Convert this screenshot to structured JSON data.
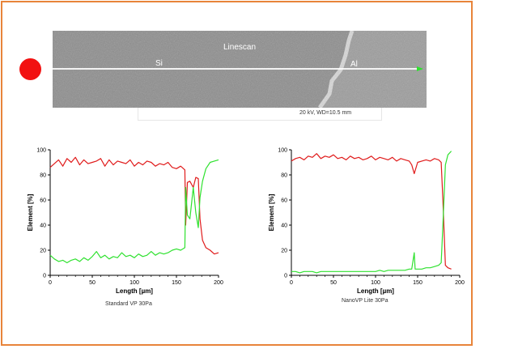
{
  "colors": {
    "border": "#e8843a",
    "dot": "#f21111",
    "red_series": "#e01b1b",
    "green_series": "#2fe12f",
    "scan_line": "#ffffff"
  },
  "sem_image": {
    "title": "Linescan",
    "label_left": "Si",
    "label_right": "Al",
    "caption": "20 kV, WD=10.5 mm"
  },
  "chart_data": [
    {
      "type": "line",
      "caption": "Standard VP 30Pa",
      "xlabel": "Length [µm]",
      "ylabel": "Element [%]",
      "xlim": [
        0,
        200
      ],
      "ylim": [
        0,
        100
      ],
      "xticks": [
        0,
        50,
        100,
        150,
        200
      ],
      "yticks": [
        0,
        20,
        40,
        60,
        80,
        100
      ],
      "grid": false,
      "series": [
        {
          "color": "#e01b1b",
          "x": [
            0,
            5,
            10,
            15,
            20,
            25,
            30,
            35,
            40,
            45,
            50,
            55,
            60,
            65,
            70,
            75,
            80,
            85,
            90,
            95,
            100,
            105,
            110,
            115,
            120,
            125,
            130,
            135,
            140,
            145,
            150,
            155,
            160,
            161,
            163,
            166,
            170,
            173,
            176,
            178,
            181,
            185,
            190,
            195,
            200
          ],
          "y": [
            86,
            89,
            92,
            87,
            93,
            90,
            94,
            88,
            92,
            89,
            90,
            91,
            93,
            87,
            92,
            88,
            91,
            90,
            89,
            92,
            87,
            90,
            88,
            91,
            90,
            87,
            89,
            88,
            90,
            86,
            85,
            87,
            84,
            40,
            74,
            75,
            70,
            78,
            77,
            45,
            28,
            22,
            20,
            17,
            18
          ]
        },
        {
          "color": "#2fe12f",
          "x": [
            0,
            5,
            10,
            15,
            20,
            25,
            30,
            35,
            40,
            45,
            50,
            55,
            60,
            65,
            70,
            75,
            80,
            85,
            90,
            95,
            100,
            105,
            110,
            115,
            120,
            125,
            130,
            135,
            140,
            145,
            150,
            155,
            160,
            161,
            163,
            166,
            170,
            173,
            176,
            178,
            181,
            185,
            190,
            195,
            200
          ],
          "y": [
            16,
            13,
            11,
            12,
            10,
            12,
            13,
            11,
            14,
            12,
            15,
            19,
            14,
            16,
            13,
            15,
            14,
            18,
            15,
            16,
            14,
            17,
            15,
            16,
            19,
            16,
            18,
            17,
            18,
            20,
            21,
            20,
            22,
            70,
            48,
            45,
            70,
            50,
            38,
            62,
            75,
            85,
            90,
            91,
            92
          ]
        }
      ]
    },
    {
      "type": "line",
      "caption": "NanoVP Lite 30Pa",
      "xlabel": "Length [µm]",
      "ylabel": "Element [%]",
      "xlim": [
        0,
        200
      ],
      "ylim": [
        0,
        100
      ],
      "xticks": [
        0,
        50,
        100,
        150,
        200
      ],
      "yticks": [
        0,
        20,
        40,
        60,
        80,
        100
      ],
      "grid": false,
      "series": [
        {
          "color": "#e01b1b",
          "x": [
            0,
            5,
            10,
            15,
            20,
            25,
            30,
            35,
            40,
            45,
            50,
            55,
            60,
            65,
            70,
            75,
            80,
            85,
            90,
            95,
            100,
            105,
            110,
            115,
            120,
            125,
            130,
            135,
            140,
            143,
            146,
            150,
            155,
            160,
            165,
            170,
            175,
            178,
            180,
            183,
            186,
            190
          ],
          "y": [
            91,
            93,
            94,
            92,
            95,
            94,
            97,
            93,
            95,
            94,
            96,
            93,
            94,
            92,
            95,
            93,
            94,
            92,
            93,
            95,
            92,
            94,
            93,
            92,
            94,
            91,
            93,
            92,
            91,
            88,
            81,
            90,
            91,
            92,
            91,
            93,
            92,
            90,
            60,
            8,
            6,
            5
          ]
        },
        {
          "color": "#2fe12f",
          "x": [
            0,
            5,
            10,
            15,
            20,
            25,
            30,
            35,
            40,
            45,
            50,
            55,
            60,
            65,
            70,
            75,
            80,
            85,
            90,
            95,
            100,
            105,
            110,
            115,
            120,
            125,
            130,
            135,
            140,
            143,
            146,
            147,
            150,
            155,
            160,
            165,
            170,
            175,
            178,
            180,
            183,
            186,
            190
          ],
          "y": [
            3,
            3,
            2,
            3,
            3,
            3,
            2,
            3,
            3,
            3,
            3,
            3,
            3,
            3,
            3,
            3,
            3,
            3,
            3,
            3,
            3,
            4,
            3,
            4,
            4,
            4,
            4,
            4,
            5,
            5,
            18,
            5,
            5,
            5,
            6,
            6,
            7,
            8,
            10,
            40,
            88,
            96,
            99
          ]
        }
      ]
    }
  ]
}
